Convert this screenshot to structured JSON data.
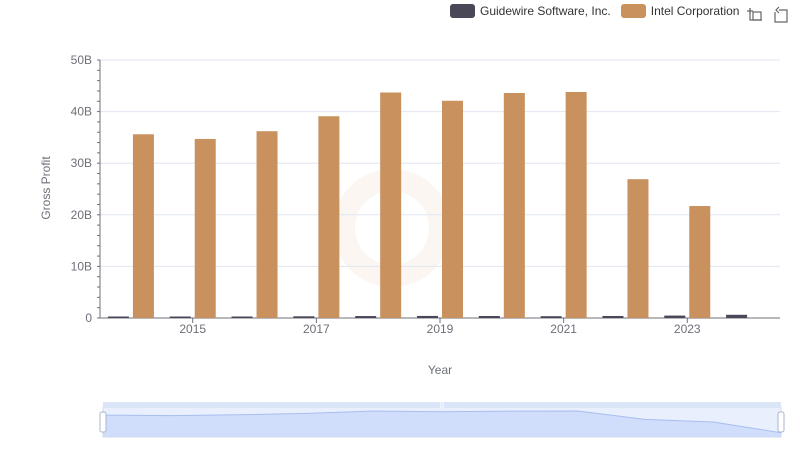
{
  "chart_data": {
    "type": "bar",
    "xlabel": "Year",
    "ylabel": "Gross Profit",
    "ylim": [
      0,
      50000000000
    ],
    "y_ticks": [
      0,
      10000000000,
      20000000000,
      30000000000,
      40000000000,
      50000000000
    ],
    "y_tick_labels": [
      "0",
      "10B",
      "20B",
      "30B",
      "40B",
      "50B"
    ],
    "categories": [
      "2014",
      "2015",
      "2016",
      "2017",
      "2018",
      "2019",
      "2020",
      "2021",
      "2022",
      "2023",
      "2024"
    ],
    "x_tick_labels": [
      "2015",
      "2017",
      "2019",
      "2021",
      "2023"
    ],
    "series": [
      {
        "name": "Guidewire Software, Inc.",
        "color": "#4a4858",
        "values": [
          230000000,
          260000000,
          290000000,
          330000000,
          380000000,
          400000000,
          390000000,
          350000000,
          390000000,
          470000000,
          620000000
        ]
      },
      {
        "name": "Intel Corporation",
        "color": "#c8915e",
        "values": [
          35600000000,
          34700000000,
          36200000000,
          39100000000,
          43700000000,
          42100000000,
          43600000000,
          43800000000,
          26900000000,
          21700000000,
          null
        ]
      }
    ],
    "legend_position": "top-right"
  },
  "toolbox": {
    "zoom_icon": "zoom-icon",
    "restore_icon": "restore-icon"
  },
  "datazoom": {
    "start_fraction": 0,
    "end_fraction": 1
  }
}
